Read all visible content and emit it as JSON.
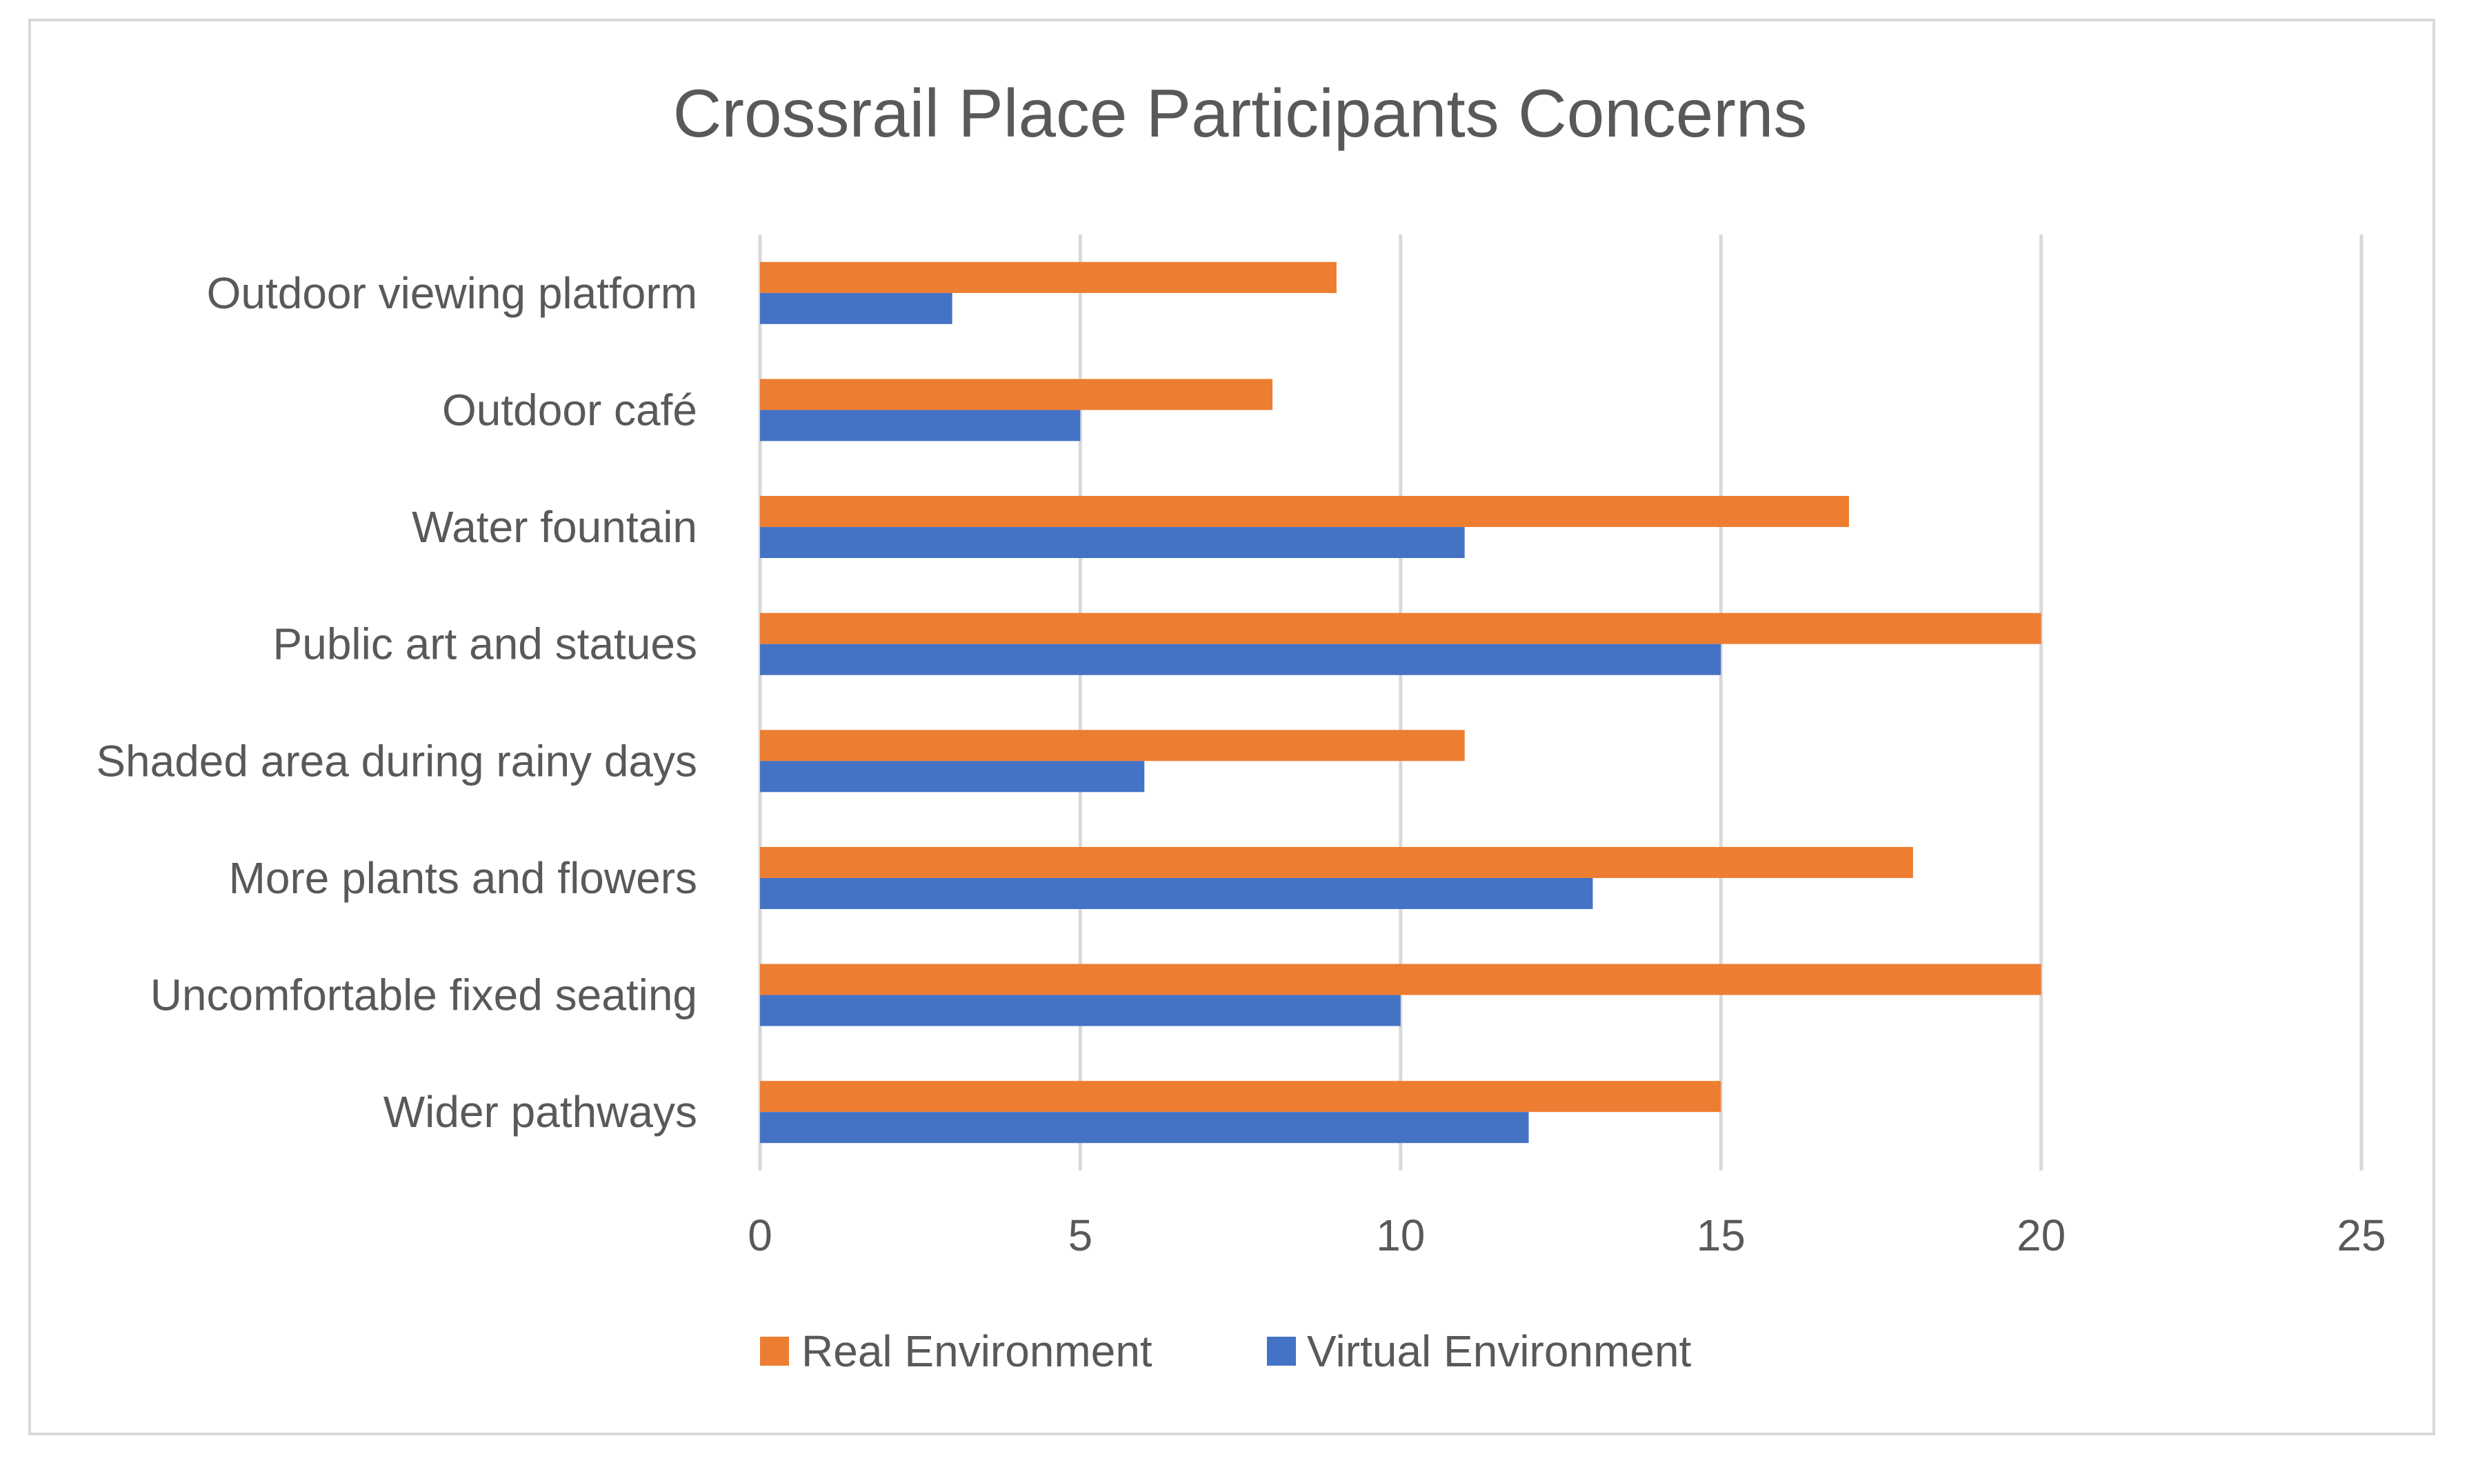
{
  "chart_data": {
    "type": "bar",
    "orientation": "horizontal",
    "title": "Crossrail Place Participants Concerns",
    "xlabel": "",
    "ylabel": "",
    "categories": [
      "Outdoor viewing platform",
      "Outdoor café",
      "Water fountain",
      "Public art and statues",
      "Shaded area during rainy days",
      "More plants and flowers",
      "Uncomfortable fixed seating",
      "Wider pathways"
    ],
    "series": [
      {
        "name": "Real Environment",
        "color": "#ed7d31",
        "values": [
          9,
          8,
          17,
          20,
          11,
          18,
          20,
          15
        ]
      },
      {
        "name": "Virtual Environment",
        "color": "#4472c4",
        "values": [
          3,
          5,
          11,
          15,
          6,
          13,
          10,
          12
        ]
      }
    ],
    "xlim": [
      0,
      25
    ],
    "xticks": [
      "0",
      "5",
      "10",
      "15",
      "20",
      "25"
    ],
    "grid": true,
    "legend_position": "bottom"
  }
}
